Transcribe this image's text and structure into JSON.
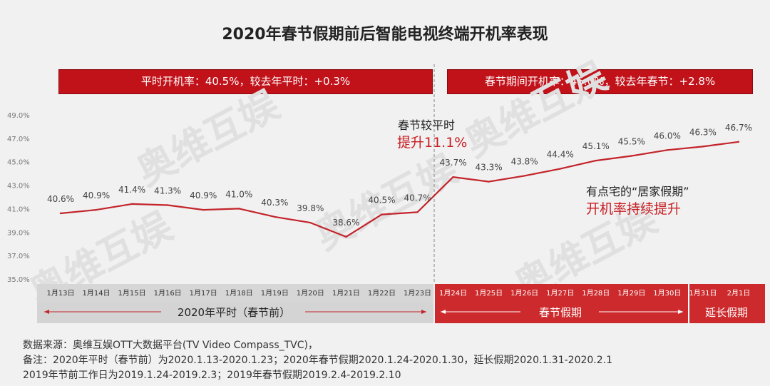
{
  "title": "2020年春节假期前后智能电视终端开机率表现",
  "banners": {
    "left": "平时开机率：40.5%，较去年平时：+0.3%",
    "right": "春节期间开机率：45.0%，较去年春节：+2.8%"
  },
  "annotations": {
    "rise_line1": "春节较平时",
    "rise_line2": "提升11.1%",
    "home_line1": "有点宅的“居家假期”",
    "home_line2": "开机率持续提升"
  },
  "periods": {
    "normal": "2020年平时（春节前）",
    "festival": "春节假期",
    "extended": "延长假期"
  },
  "watermark": "奥维互娱",
  "colors": {
    "line": "#c3242a",
    "banner": "#c1121a",
    "normal_band": "#d4d4d4",
    "festival_band": "#cc2a2c",
    "date_strip": "#d6d6d6"
  },
  "chart_data": {
    "type": "line",
    "categories": [
      "1月13日",
      "1月14日",
      "1月15日",
      "1月16日",
      "1月17日",
      "1月18日",
      "1月19日",
      "1月20日",
      "1月21日",
      "1月22日",
      "1月23日",
      "1月24日",
      "1月25日",
      "1月26日",
      "1月27日",
      "1月28日",
      "1月29日",
      "1月30日",
      "1月31日",
      "2月1日"
    ],
    "values": [
      40.6,
      40.9,
      41.4,
      41.3,
      40.9,
      41.0,
      40.3,
      39.8,
      38.6,
      40.5,
      40.7,
      43.7,
      43.3,
      43.8,
      44.4,
      45.1,
      45.5,
      46.0,
      46.3,
      46.7
    ],
    "value_labels": [
      "40.6%",
      "40.9%",
      "41.4%",
      "41.3%",
      "40.9%",
      "41.0%",
      "40.3%",
      "39.8%",
      "38.6%",
      "40.5%",
      "40.7%",
      "43.7%",
      "43.3%",
      "43.8%",
      "44.4%",
      "45.1%",
      "45.5%",
      "46.0%",
      "46.3%",
      "46.7%"
    ],
    "ylim": [
      35,
      49
    ],
    "yticks": [
      "35.0%",
      "37.0%",
      "39.0%",
      "41.0%",
      "43.0%",
      "45.0%",
      "47.0%",
      "49.0%"
    ],
    "grid": false,
    "xlabel": "",
    "ylabel": ""
  },
  "source": {
    "line1": "数据来源：奥维互娱OTT大数据平台(TV Video Compass_TVC)，",
    "line2": "备注：2020年平时（春节前）为2020.1.13-2020.1.23；2020年春节假期2020.1.24-2020.1.30，延长假期2020.1.31-2020.2.1",
    "line3": "2019年节前工作日为2019.1.24-2019.2.3；2019年春节假期2019.2.4-2019.2.10"
  }
}
